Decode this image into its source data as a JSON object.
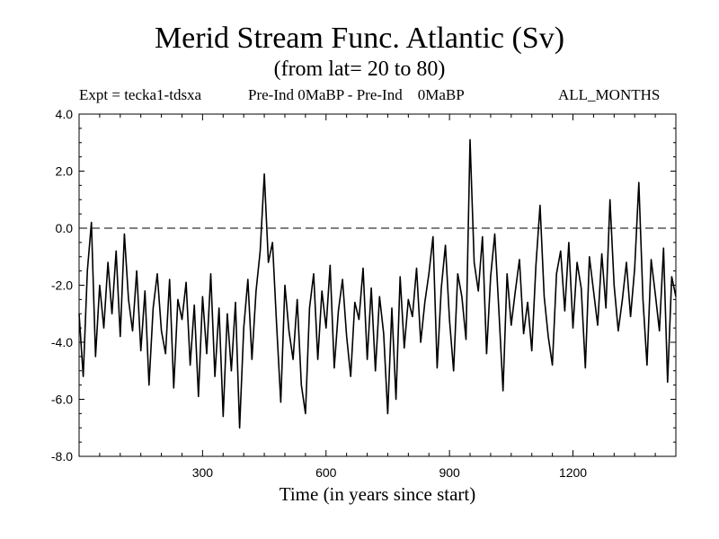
{
  "chart_data": {
    "type": "line",
    "title": "Merid Stream Func. Atlantic (Sv)",
    "subtitle": "(from lat= 20 to 80)",
    "expt_label": "Expt = tecka1-tdsxa",
    "comparison_label": "Pre-Ind 0MaBP - Pre-Ind    0MaBP",
    "period_label": "ALL_MONTHS",
    "xlabel": "Time (in years since start)",
    "ylabel": "",
    "xlim": [
      0,
      1450
    ],
    "ylim": [
      -8.0,
      4.0
    ],
    "x_ticks": [
      300,
      600,
      900,
      1200
    ],
    "x_tick_labels": [
      "300",
      "600",
      "900",
      "1200"
    ],
    "y_ticks": [
      4.0,
      2.0,
      0.0,
      -2.0,
      -4.0,
      -6.0,
      -8.0
    ],
    "y_tick_labels": [
      "4.0",
      "2.0",
      "0.0",
      "-2.0",
      "-4.0",
      "-6.0",
      "-8.0"
    ],
    "reference_line": 0.0,
    "series": [
      {
        "name": "Merid Stream Func. Atlantic",
        "x": [
          0,
          10,
          20,
          30,
          40,
          50,
          60,
          70,
          80,
          90,
          100,
          110,
          120,
          130,
          140,
          150,
          160,
          170,
          180,
          190,
          200,
          210,
          220,
          230,
          240,
          250,
          260,
          270,
          280,
          290,
          300,
          310,
          320,
          330,
          340,
          350,
          360,
          370,
          380,
          390,
          400,
          410,
          420,
          430,
          440,
          450,
          460,
          470,
          480,
          490,
          500,
          510,
          520,
          530,
          540,
          550,
          560,
          570,
          580,
          590,
          600,
          610,
          620,
          630,
          640,
          650,
          660,
          670,
          680,
          690,
          700,
          710,
          720,
          730,
          740,
          750,
          760,
          770,
          780,
          790,
          800,
          810,
          820,
          830,
          840,
          850,
          860,
          870,
          880,
          890,
          900,
          910,
          920,
          930,
          940,
          950,
          960,
          970,
          980,
          990,
          1000,
          1010,
          1020,
          1030,
          1040,
          1050,
          1060,
          1070,
          1080,
          1090,
          1100,
          1110,
          1120,
          1130,
          1140,
          1150,
          1160,
          1170,
          1180,
          1190,
          1200,
          1210,
          1220,
          1230,
          1240,
          1250,
          1260,
          1270,
          1280,
          1290,
          1300,
          1310,
          1320,
          1330,
          1340,
          1350,
          1360,
          1370,
          1380,
          1390,
          1400,
          1410,
          1420,
          1430,
          1440,
          1450
        ],
        "values": [
          -3.0,
          -5.2,
          -1.5,
          0.2,
          -4.5,
          -2.0,
          -3.5,
          -1.2,
          -3.0,
          -0.8,
          -3.8,
          -0.2,
          -2.5,
          -3.6,
          -1.5,
          -4.3,
          -2.2,
          -5.5,
          -2.8,
          -1.6,
          -3.6,
          -4.4,
          -1.8,
          -5.6,
          -2.5,
          -3.2,
          -1.9,
          -4.8,
          -2.7,
          -5.9,
          -2.4,
          -4.4,
          -1.6,
          -5.2,
          -2.8,
          -6.6,
          -3.0,
          -5.0,
          -2.6,
          -7.0,
          -3.5,
          -1.8,
          -4.6,
          -2.2,
          -0.8,
          1.9,
          -1.2,
          -0.5,
          -3.4,
          -6.1,
          -2.0,
          -3.6,
          -4.6,
          -2.5,
          -5.5,
          -6.5,
          -2.8,
          -1.6,
          -4.6,
          -2.2,
          -3.5,
          -1.3,
          -4.9,
          -2.9,
          -1.8,
          -3.8,
          -5.2,
          -2.6,
          -3.2,
          -1.4,
          -4.6,
          -2.1,
          -5.0,
          -2.4,
          -3.7,
          -6.5,
          -2.8,
          -6.0,
          -1.7,
          -4.2,
          -2.5,
          -3.1,
          -1.4,
          -4.0,
          -2.6,
          -1.6,
          -0.3,
          -4.9,
          -2.1,
          -0.6,
          -3.2,
          -5.0,
          -1.6,
          -2.4,
          -3.9,
          3.1,
          -1.2,
          -2.2,
          -0.3,
          -4.4,
          -1.7,
          -0.2,
          -2.9,
          -5.7,
          -1.6,
          -3.4,
          -2.2,
          -1.1,
          -3.7,
          -2.6,
          -4.3,
          -1.3,
          0.8,
          -2.4,
          -3.8,
          -4.8,
          -1.6,
          -0.8,
          -2.9,
          -0.5,
          -3.5,
          -1.2,
          -2.1,
          -4.9,
          -1.0,
          -2.2,
          -3.4,
          -0.9,
          -2.8,
          1.0,
          -2.0,
          -3.6,
          -2.5,
          -1.2,
          -3.1,
          -1.4,
          1.6,
          -2.5,
          -4.8,
          -1.1,
          -2.3,
          -3.6,
          -0.7,
          -5.4,
          -1.7,
          -2.4
        ],
        "color": "#000000"
      }
    ]
  }
}
